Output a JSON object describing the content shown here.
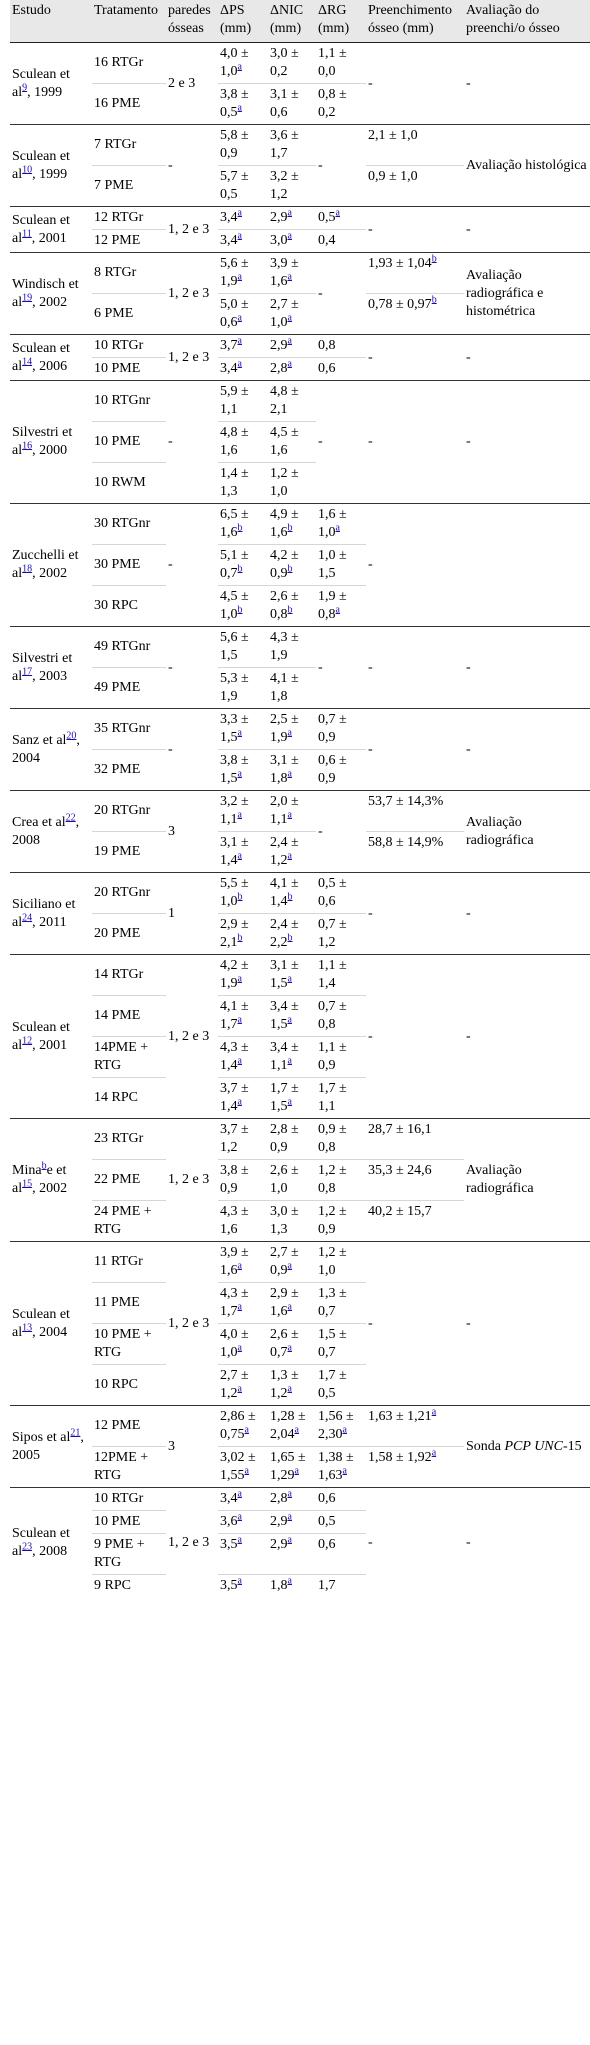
{
  "headers": [
    "Estudo",
    "Tratamento",
    "paredes ósseas",
    "ΔPS (mm)",
    "ΔNIC (mm)",
    "ΔRG (mm)",
    "Preenchimento ósseo (mm)",
    "Avaliação do preenchi/o ósseo"
  ],
  "groups": [
    {
      "study": "Sculean et al",
      "ref": "9",
      "year": ", 1999",
      "walls": "2 e 3",
      "fill": "-",
      "eval": "-",
      "shared_fill": true,
      "rows": [
        {
          "t": "16 RTGr",
          "ps": "4,0 ± 1,0",
          "pss": "a",
          "nic": "3,0 ± 0,2",
          "nics": "",
          "rg": "1,1 ± 0,0",
          "rgs": ""
        },
        {
          "t": "16 PME",
          "ps": "3,8 ± 0,5",
          "pss": "a",
          "nic": "3,1 ± 0,6",
          "nics": "",
          "rg": "0,8 ± 0,2",
          "rgs": ""
        }
      ]
    },
    {
      "study": "Sculean et al",
      "ref": "10",
      "year": ", 1999",
      "walls": "-",
      "rg_shared": "-",
      "eval": "Avaliação histológica",
      "rows": [
        {
          "t": "7 RTGr",
          "ps": "5,8 ± 0,9",
          "pss": "",
          "nic": "3,6 ± 1,7",
          "nics": "",
          "fill": "2,1 ± 1,0",
          "fills": ""
        },
        {
          "t": "7 PME",
          "ps": "5,7 ± 0,5",
          "pss": "",
          "nic": "3,2 ± 1,2",
          "nics": "",
          "fill": "0,9 ± 1,0",
          "fills": ""
        }
      ]
    },
    {
      "study": "Sculean et al",
      "ref": "11",
      "year": ", 2001",
      "walls": "1, 2 e 3",
      "fill": "-",
      "eval": "-",
      "shared_fill": true,
      "rows": [
        {
          "t": "12 RTGr",
          "ps": "3,4",
          "pss": "a",
          "nic": "2,9",
          "nics": "a",
          "rg": "0,5",
          "rgs": "a"
        },
        {
          "t": "12 PME",
          "ps": "3,4",
          "pss": "a",
          "nic": "3,0",
          "nics": "a",
          "rg": "0,4",
          "rgs": ""
        }
      ]
    },
    {
      "study": "Windisch et al",
      "ref": "19",
      "year": ", 2002",
      "walls": "1, 2 e 3",
      "rg_shared": "-",
      "eval": "Avaliação radiográfica e histométrica",
      "rows": [
        {
          "t": "8 RTGr",
          "ps": "5,6 ± 1,9",
          "pss": "a",
          "nic": "3,9 ± 1,6",
          "nics": "a",
          "fill": "1,93 ± 1,04",
          "fills": "b"
        },
        {
          "t": "6 PME",
          "ps": "5,0 ± 0,6",
          "pss": "a",
          "nic": "2,7 ± 1,0",
          "nics": "a",
          "fill": "0,78 ± 0,97",
          "fills": "b"
        }
      ]
    },
    {
      "study": "Sculean et al",
      "ref": "14",
      "year": ", 2006",
      "walls": "1, 2 e 3",
      "fill": "-",
      "eval": "-",
      "shared_fill": true,
      "rows": [
        {
          "t": "10 RTGr",
          "ps": "3,7",
          "pss": "a",
          "nic": "2,9",
          "nics": "a",
          "rg": "0,8",
          "rgs": ""
        },
        {
          "t": "10 PME",
          "ps": "3,4",
          "pss": "a",
          "nic": "2,8",
          "nics": "a",
          "rg": "0,6",
          "rgs": ""
        }
      ]
    },
    {
      "study": "Silvestri et al",
      "ref": "16",
      "year": ", 2000",
      "walls": "-",
      "rg_shared": "-",
      "fill": "-",
      "eval": "-",
      "shared_fill": true,
      "rows": [
        {
          "t": "10 RTGnr",
          "ps": "5,9 ± 1,1",
          "pss": "",
          "nic": "4,8 ± 2,1",
          "nics": ""
        },
        {
          "t": "10 PME",
          "ps": "4,8 ± 1,6",
          "pss": "",
          "nic": "4,5 ± 1,6",
          "nics": ""
        },
        {
          "t": "10 RWM",
          "ps": "1,4 ± 1,3",
          "pss": "",
          "nic": "1,2 ± 1,0",
          "nics": ""
        }
      ]
    },
    {
      "study": "Zucchelli et al",
      "ref": "18",
      "year": ", 2002",
      "walls": "-",
      "fill": "-",
      "eval": "",
      "shared_fill": true,
      "rows": [
        {
          "t": "30 RTGnr",
          "ps": "6,5 ± 1,6",
          "pss": "b",
          "nic": "4,9 ± 1,6",
          "nics": "b",
          "rg": "1,6 ± 1,0",
          "rgs": "a"
        },
        {
          "t": "30 PME",
          "ps": "5,1 ± 0,7",
          "pss": "b",
          "nic": "4,2 ± 0,9",
          "nics": "b",
          "rg": "1,0 ± 1,5",
          "rgs": ""
        },
        {
          "t": "30 RPC",
          "ps": "4,5 ± 1,0",
          "pss": "b",
          "nic": "2,6 ± 0,8",
          "nics": "b",
          "rg": "1,9 ± 0,8",
          "rgs": "a"
        }
      ]
    },
    {
      "study": "Silvestri et al",
      "ref": "17",
      "year": ", 2003",
      "walls": "-",
      "rg_shared": "-",
      "fill": "-",
      "eval": "-",
      "shared_fill": true,
      "rows": [
        {
          "t": "49 RTGnr",
          "ps": "5,6 ± 1,5",
          "pss": "",
          "nic": "4,3 ± 1,9",
          "nics": ""
        },
        {
          "t": "49 PME",
          "ps": "5,3 ± 1,9",
          "pss": "",
          "nic": "4,1 ± 1,8",
          "nics": ""
        }
      ]
    },
    {
      "study": "Sanz et al",
      "ref": "20",
      "year": ", 2004",
      "walls": "-",
      "fill": "-",
      "eval": "-",
      "shared_fill": true,
      "rows": [
        {
          "t": "35 RTGnr",
          "ps": "3,3 ± 1,5",
          "pss": "a",
          "nic": "2,5 ± 1,9",
          "nics": "a",
          "rg": "0,7 ± 0,9",
          "rgs": ""
        },
        {
          "t": "32 PME",
          "ps": "3,8 ± 1,5",
          "pss": "a",
          "nic": "3,1 ± 1,8",
          "nics": "a",
          "rg": "0,6 ± 0,9",
          "rgs": ""
        }
      ]
    },
    {
      "study": "Crea et al",
      "ref": "22",
      "year": ", 2008",
      "walls": "3",
      "rg_shared": "-",
      "eval": "Avaliação radiográfica",
      "rows": [
        {
          "t": "20 RTGnr",
          "ps": "3,2 ± 1,1",
          "pss": "a",
          "nic": "2,0 ± 1,1",
          "nics": "a",
          "fill": "53,7 ± 14,3%",
          "fills": ""
        },
        {
          "t": "19 PME",
          "ps": "3,1 ± 1,4",
          "pss": "a",
          "nic": "2,4 ± 1,2",
          "nics": "a",
          "fill": "58,8 ± 14,9%",
          "fills": ""
        }
      ]
    },
    {
      "study": "Siciliano et al",
      "ref": "24",
      "year": ", 2011",
      "walls": "1",
      "fill": "-",
      "eval": "-",
      "shared_fill": true,
      "rows": [
        {
          "t": "20 RTGnr",
          "ps": "5,5 ± 1,0",
          "pss": "b",
          "nic": "4,1 ± 1,4",
          "nics": "b",
          "rg": "0,5 ± 0,6",
          "rgs": ""
        },
        {
          "t": "20 PME",
          "ps": "2,9 ± 2,1",
          "pss": "b",
          "nic": "2,4 ± 2,2",
          "nics": "b",
          "rg": "0,7 ± 1,2",
          "rgs": ""
        }
      ]
    },
    {
      "study": "Sculean et al",
      "ref": "12",
      "year": ", 2001",
      "walls": "1, 2 e 3",
      "fill": "-",
      "eval": "-",
      "shared_fill": true,
      "rows": [
        {
          "t": "14 RTGr",
          "ps": "4,2 ± 1,9",
          "pss": "a",
          "nic": "3,1 ± 1,5",
          "nics": "a",
          "rg": "1,1 ± 1,4",
          "rgs": ""
        },
        {
          "t": "14 PME",
          "ps": "4,1 ± 1,7",
          "pss": "a",
          "nic": "3,4 ± 1,5",
          "nics": "a",
          "rg": "0,7 ± 0,8",
          "rgs": ""
        },
        {
          "t": "14PME + RTG",
          "ps": "4,3 ± 1,4",
          "pss": "a",
          "nic": "3,4 ± 1,1",
          "nics": "a",
          "rg": "1,1 ± 0,9",
          "rgs": ""
        },
        {
          "t": "14 RPC",
          "ps": "3,7 ± 1,4",
          "pss": "a",
          "nic": "1,7 ± 1,5",
          "nics": "a",
          "rg": "1,7 ± 1,1",
          "rgs": ""
        }
      ]
    },
    {
      "study": "Mina",
      "studysup": "b",
      "study2": "e et al",
      "ref": "15",
      "year": ", 2002",
      "walls": "1, 2 e 3",
      "eval": "Avaliação radiográfica",
      "rows": [
        {
          "t": "23 RTGr",
          "ps": "3,7 ± 1,2",
          "pss": "",
          "nic": "2,8 ± 0,9",
          "nics": "",
          "rg": "0,9 ± 0,8",
          "rgs": "",
          "fill": "28,7 ± 16,1",
          "fills": ""
        },
        {
          "t": "22 PME",
          "ps": "3,8 ± 0,9",
          "pss": "",
          "nic": "2,6 ± 1,0",
          "nics": "",
          "rg": "1,2 ± 0,8",
          "rgs": "",
          "fill": "35,3 ± 24,6",
          "fills": ""
        },
        {
          "t": "24 PME + RTG",
          "ps": "4,3 ± 1,6",
          "pss": "",
          "nic": "3,0 ± 1,3",
          "nics": "",
          "rg": "1,2 ± 0,9",
          "rgs": "",
          "fill": "40,2 ± 15,7",
          "fills": ""
        }
      ]
    },
    {
      "study": "Sculean et al",
      "ref": "13",
      "year": ", 2004",
      "walls": "1, 2 e 3",
      "fill": "-",
      "eval": "-",
      "shared_fill": true,
      "rows": [
        {
          "t": "11 RTGr",
          "ps": "3,9 ± 1,6",
          "pss": "a",
          "nic": "2,7 ± 0,9",
          "nics": "a",
          "rg": "1,2 ± 1,0",
          "rgs": ""
        },
        {
          "t": "11 PME",
          "ps": "4,3 ± 1,7",
          "pss": "a",
          "nic": "2,9 ± 1,6",
          "nics": "a",
          "rg": "1,3 ± 0,7",
          "rgs": ""
        },
        {
          "t": "10 PME + RTG",
          "ps": "4,0 ± 1,0",
          "pss": "a",
          "nic": "2,6 ± 0,7",
          "nics": "a",
          "rg": "1,5 ± 0,7",
          "rgs": ""
        },
        {
          "t": "10 RPC",
          "ps": "2,7 ± 1,2",
          "pss": "a",
          "nic": "1,3 ± 1,2",
          "nics": "a",
          "rg": "1,7 ± 0,5",
          "rgs": ""
        }
      ]
    },
    {
      "study": "Sipos et al",
      "ref": "21",
      "year": ", 2005",
      "walls": "3",
      "eval_pre": "Sonda ",
      "eval_it": "PCP UNC",
      "eval_post": "-15",
      "rows": [
        {
          "t": "12 PME",
          "ps": "2,86 ± 0,75",
          "pss": "a",
          "nic": "1,28 ± 2,04",
          "nics": "a",
          "rg": "1,56 ± 2,30",
          "rgs": "a",
          "fill": "1,63 ± 1,21",
          "fills": "a"
        },
        {
          "t": "12PME + RTG",
          "ps": "3,02 ± 1,55",
          "pss": "a",
          "nic": "1,65 ± 1,29",
          "nics": "a",
          "rg": "1,38 ± 1,63",
          "rgs": "a",
          "fill": "1,58 ± 1,92",
          "fills": "a"
        }
      ]
    },
    {
      "study": "Sculean et al",
      "ref": "23",
      "year": ", 2008",
      "walls": "1, 2 e 3",
      "fill": "-",
      "eval": "-",
      "shared_fill": true,
      "rows": [
        {
          "t": "10 RTGr",
          "ps": "3,4",
          "pss": "a",
          "nic": "2,8",
          "nics": "a",
          "rg": "0,6",
          "rgs": ""
        },
        {
          "t": "10 PME",
          "ps": "3,6",
          "pss": "a",
          "nic": "2,9",
          "nics": "a",
          "rg": "0,5",
          "rgs": ""
        },
        {
          "t": "9 PME + RTG",
          "ps": "3,5",
          "pss": "a",
          "nic": "2,9",
          "nics": "a",
          "rg": "0,6",
          "rgs": ""
        },
        {
          "t": "9 RPC",
          "ps": "3,5",
          "pss": "a",
          "nic": "1,8",
          "nics": "a",
          "rg": "1,7",
          "rgs": ""
        }
      ]
    }
  ]
}
